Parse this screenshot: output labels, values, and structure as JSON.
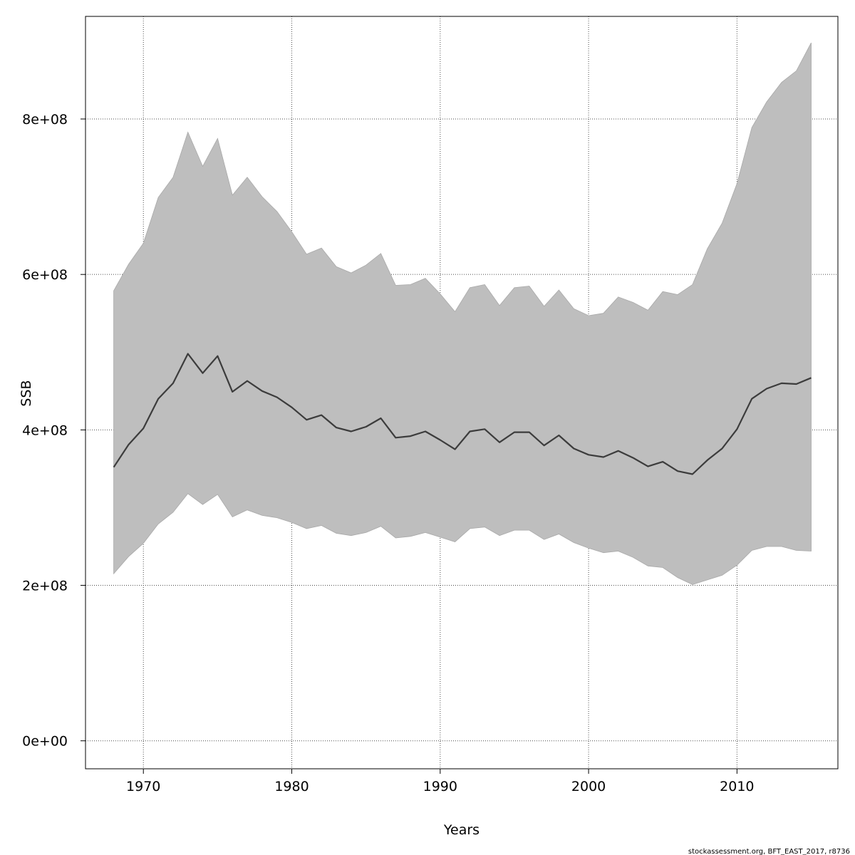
{
  "chart_data": {
    "type": "area",
    "xlabel": "Years",
    "ylabel": "SSB",
    "xlim": [
      1966.1,
      2016.8
    ],
    "ylim": [
      -36000000,
      932000000
    ],
    "x_ticks": [
      1970,
      1980,
      1990,
      2000,
      2010
    ],
    "x_tick_labels": [
      "1970",
      "1980",
      "1990",
      "2000",
      "2010"
    ],
    "y_ticks": [
      0,
      200000000,
      400000000,
      600000000,
      800000000
    ],
    "y_tick_labels": [
      "0e+00",
      "2e+08",
      "4e+08",
      "6e+08",
      "8e+08"
    ],
    "grid": true,
    "x": [
      1968,
      1969,
      1970,
      1971,
      1972,
      1973,
      1974,
      1975,
      1976,
      1977,
      1978,
      1979,
      1980,
      1981,
      1982,
      1983,
      1984,
      1985,
      1986,
      1987,
      1988,
      1989,
      1990,
      1991,
      1992,
      1993,
      1994,
      1995,
      1996,
      1997,
      1998,
      1999,
      2000,
      2001,
      2002,
      2003,
      2004,
      2005,
      2006,
      2007,
      2008,
      2009,
      2010,
      2011,
      2012,
      2013,
      2014,
      2015
    ],
    "series": [
      {
        "values": [
          352,
          381,
          402,
          440,
          460,
          498,
          473,
          495,
          449,
          463,
          450,
          442,
          429,
          413,
          419,
          403,
          398,
          404,
          415,
          390,
          392,
          398,
          387,
          375,
          398,
          401,
          384,
          397,
          397,
          380,
          393,
          376,
          368,
          365,
          373,
          364,
          353,
          359,
          347,
          343,
          361,
          376,
          401,
          440,
          453,
          460,
          459,
          467
        ]
      }
    ],
    "values_scale": 1000000,
    "band": {
      "upper": [
        579,
        613,
        640,
        699,
        725,
        783,
        739,
        775,
        702,
        725,
        700,
        681,
        655,
        626,
        634,
        610,
        602,
        612,
        627,
        586,
        587,
        595,
        575,
        552,
        583,
        587,
        560,
        583,
        585,
        559,
        580,
        556,
        547,
        550,
        571,
        564,
        554,
        578,
        574,
        587,
        633,
        666,
        717,
        789,
        822,
        847,
        862,
        898
      ],
      "lower": [
        215,
        237,
        254,
        279,
        294,
        318,
        304,
        317,
        288,
        297,
        290,
        287,
        281,
        273,
        277,
        267,
        264,
        268,
        276,
        261,
        263,
        268,
        262,
        256,
        273,
        275,
        264,
        271,
        271,
        259,
        266,
        255,
        248,
        242,
        244,
        236,
        225,
        223,
        210,
        201,
        207,
        213,
        226,
        245,
        250,
        250,
        245,
        244
      ]
    },
    "colors": {
      "band": "#bebebe",
      "line": "#3c3c3c",
      "grid": "#4d4d4d"
    }
  },
  "footer": {
    "credit": "stockassessment.org, BFT_EAST_2017, r8736"
  }
}
